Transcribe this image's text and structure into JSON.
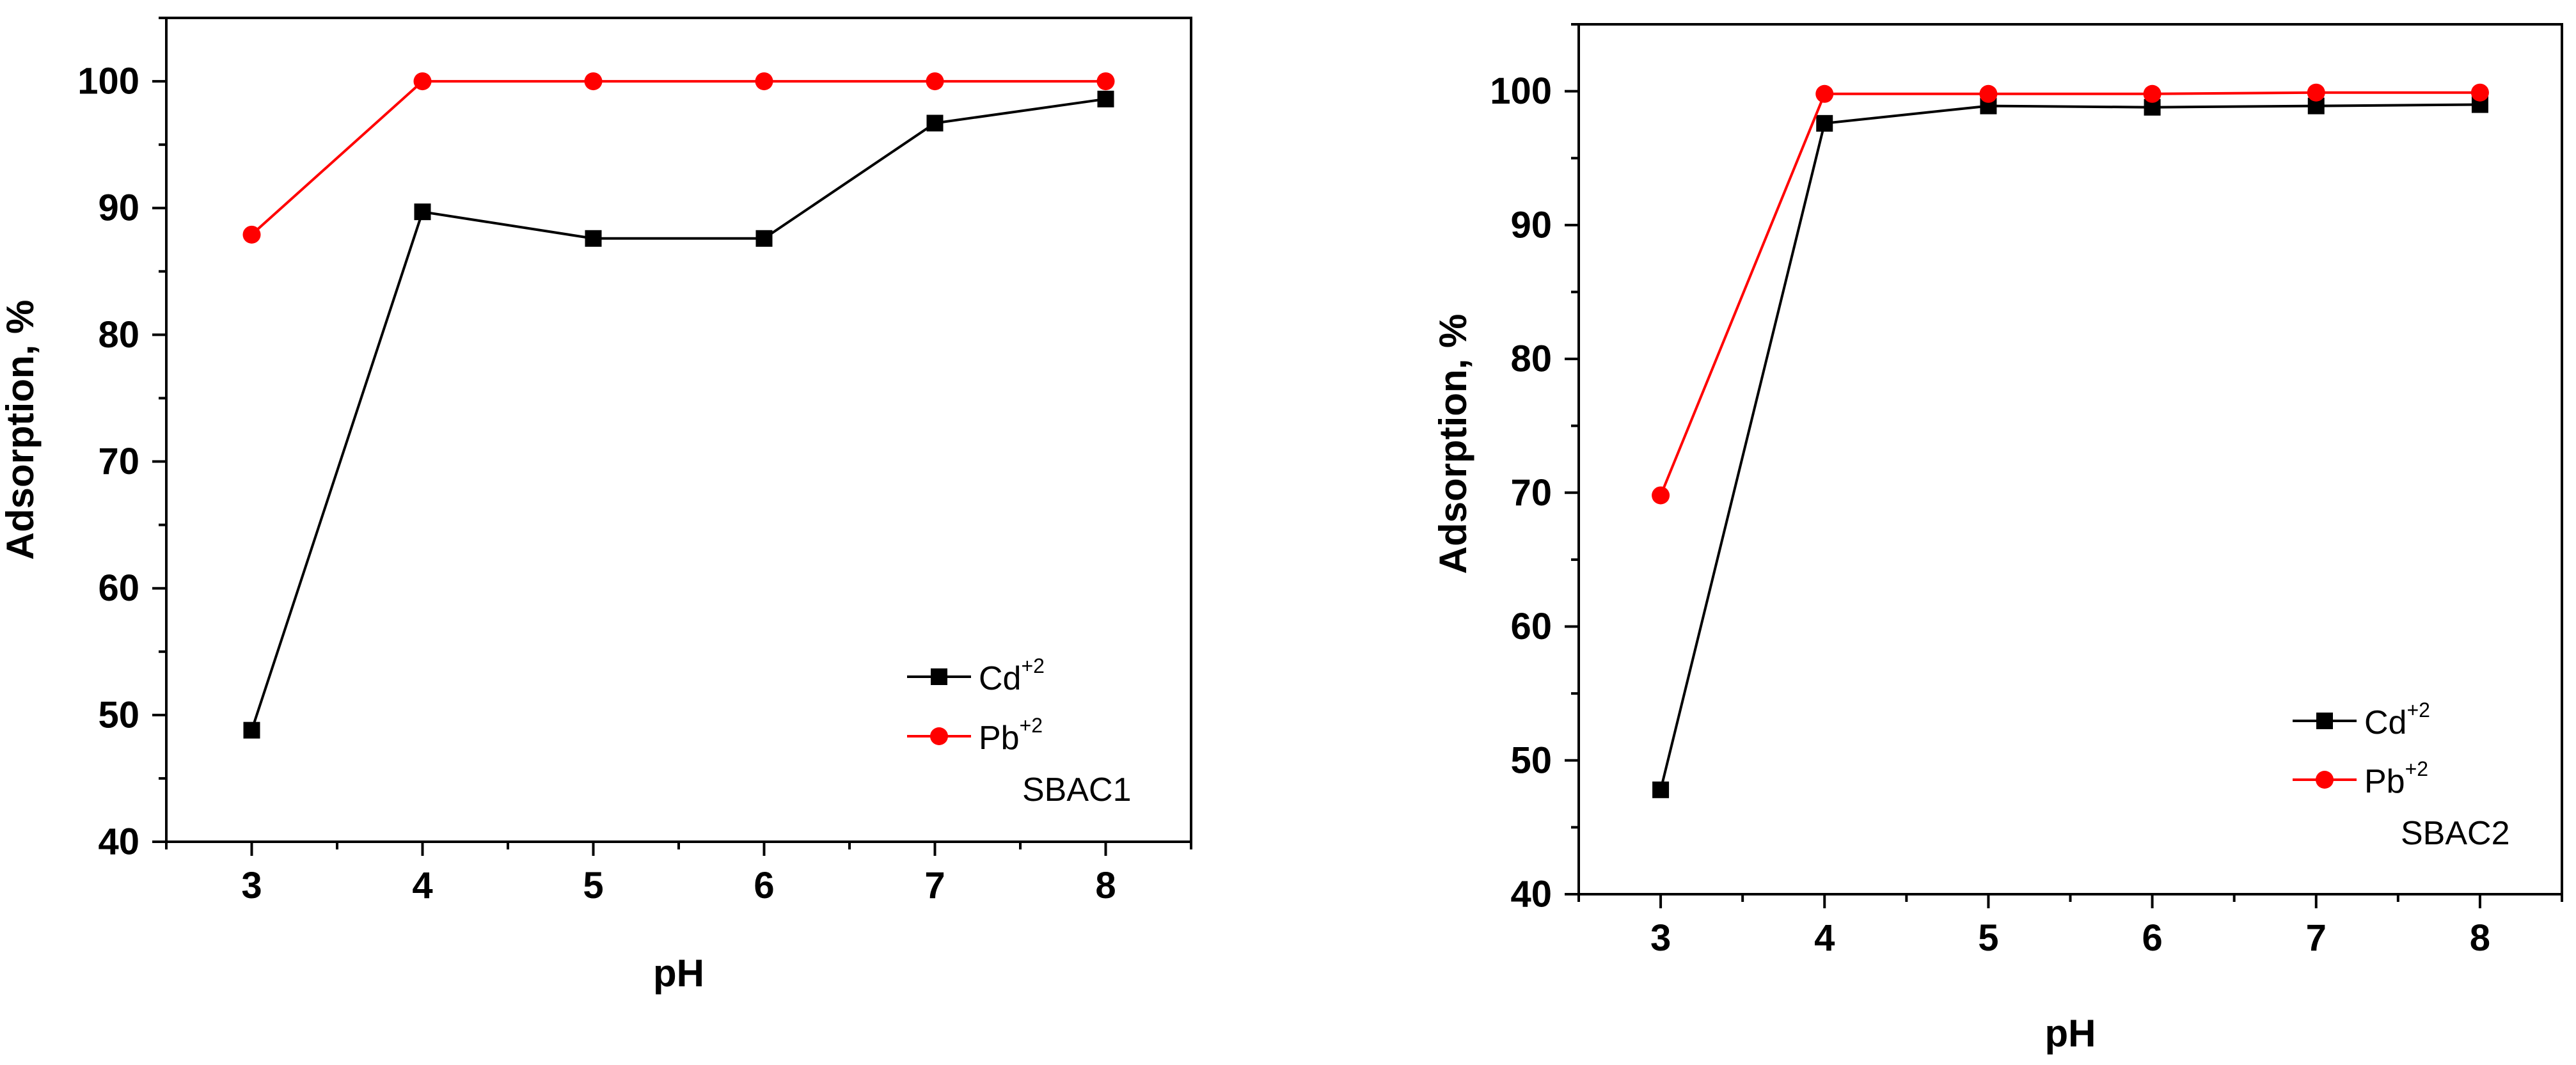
{
  "chart_data": [
    {
      "type": "line",
      "panel_label": "SBAC1",
      "xlabel": "pH",
      "ylabel": "Adsorption, %",
      "xlim": [
        2.5,
        8.5
      ],
      "ylim": [
        40,
        105
      ],
      "xticks": [
        3,
        4,
        5,
        6,
        7,
        8
      ],
      "yticks": [
        40,
        50,
        60,
        70,
        80,
        90,
        100
      ],
      "x": [
        3,
        4,
        5,
        6,
        7,
        8
      ],
      "series": [
        {
          "name": "Cd",
          "sup": "+2",
          "marker": "square",
          "color": "#000000",
          "values": [
            48.8,
            89.7,
            87.6,
            87.6,
            96.7,
            98.6
          ]
        },
        {
          "name": "Pb",
          "sup": "+2",
          "marker": "circle",
          "color": "#ff0000",
          "values": [
            87.9,
            100,
            100,
            100,
            100,
            100
          ]
        }
      ],
      "legend_position": "bottom-right"
    },
    {
      "type": "line",
      "panel_label": "SBAC2",
      "xlabel": "pH",
      "ylabel": "Adsorption, %",
      "xlim": [
        2.5,
        8.5
      ],
      "ylim": [
        40,
        105
      ],
      "xticks": [
        3,
        4,
        5,
        6,
        7,
        8
      ],
      "yticks": [
        40,
        50,
        60,
        70,
        80,
        90,
        100
      ],
      "x": [
        3,
        4,
        5,
        6,
        7,
        8
      ],
      "series": [
        {
          "name": "Cd",
          "sup": "+2",
          "marker": "square",
          "color": "#000000",
          "values": [
            47.8,
            97.6,
            98.9,
            98.8,
            98.9,
            99.0
          ]
        },
        {
          "name": "Pb",
          "sup": "+2",
          "marker": "circle",
          "color": "#ff0000",
          "values": [
            69.8,
            99.8,
            99.8,
            99.8,
            99.9,
            99.9
          ]
        }
      ],
      "legend_position": "bottom-right"
    }
  ]
}
